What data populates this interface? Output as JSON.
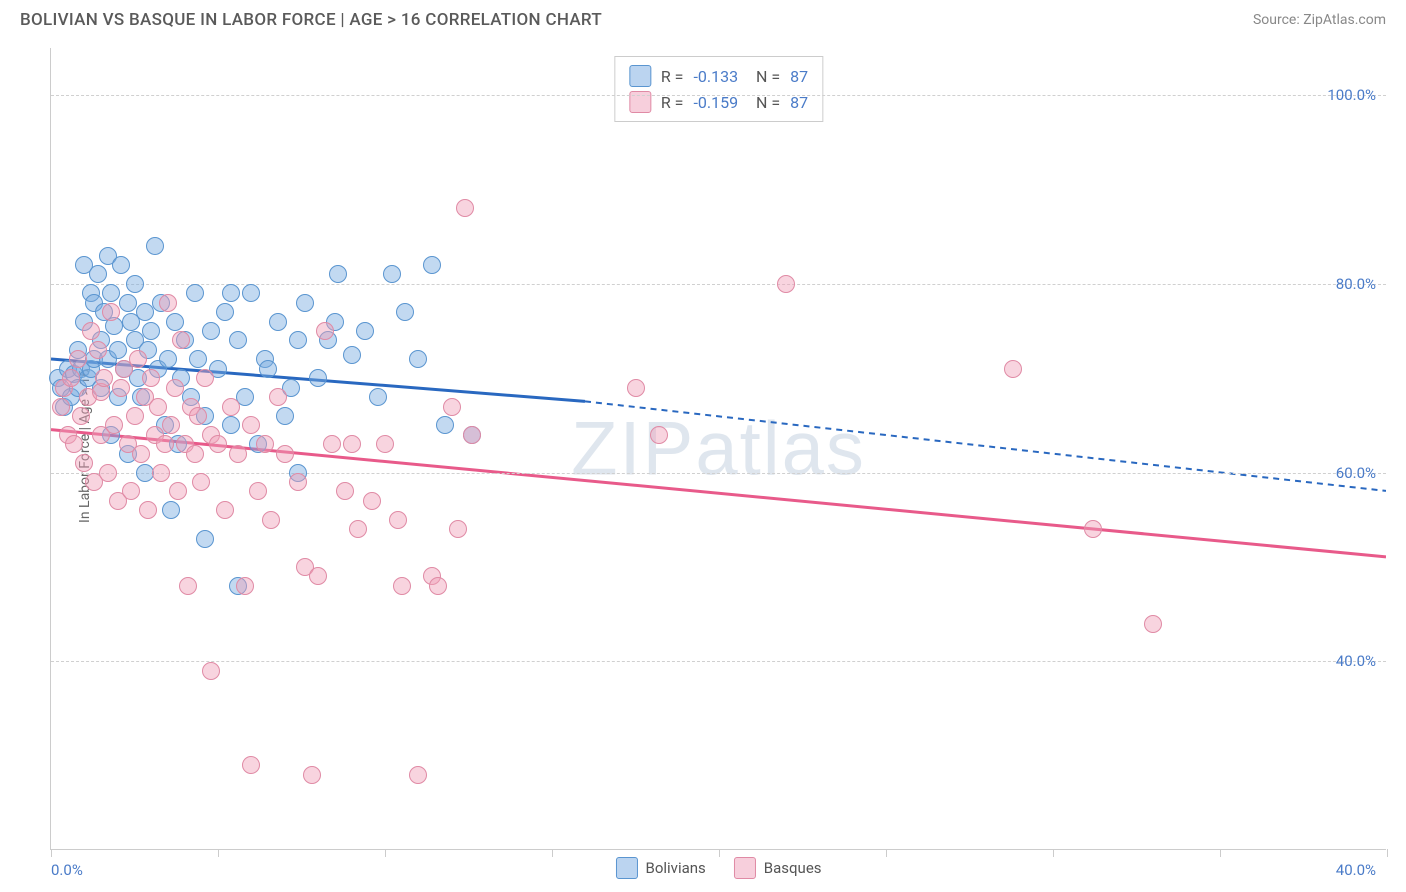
{
  "title": "BOLIVIAN VS BASQUE IN LABOR FORCE | AGE > 16 CORRELATION CHART",
  "source": "Source: ZipAtlas.com",
  "watermark": "ZIPatlas",
  "chart": {
    "type": "scatter",
    "ylabel": "In Labor Force | Age > 16",
    "xlim": [
      0,
      40
    ],
    "ylim": [
      20,
      105
    ],
    "xtick_positions": [
      0,
      5,
      10,
      15,
      20,
      25,
      30,
      35,
      40
    ],
    "xtick_labels": {
      "first": "0.0%",
      "last": "40.0%"
    },
    "ytick_positions": [
      40,
      60,
      80,
      100
    ],
    "ytick_labels": [
      "40.0%",
      "60.0%",
      "80.0%",
      "100.0%"
    ],
    "grid_color": "#d0d0d0",
    "background_color": "#ffffff",
    "axis_color": "#cccccc",
    "label_color": "#4a7bc8",
    "point_radius": 9,
    "series": [
      {
        "name": "Bolivians",
        "color_fill": "rgba(120,170,225,0.45)",
        "color_stroke": "#5a95d0",
        "trend_color": "#2968c0",
        "trend_width": 3,
        "trend": {
          "x1": 0,
          "y1": 72,
          "x2_solid": 16,
          "y2_solid": 67.5,
          "x2_dash": 40,
          "y2_dash": 58
        },
        "R": "-0.133",
        "N": "87",
        "points": [
          [
            0.2,
            70
          ],
          [
            0.3,
            69
          ],
          [
            0.4,
            67
          ],
          [
            0.5,
            71
          ],
          [
            0.6,
            68
          ],
          [
            0.7,
            70.5
          ],
          [
            0.8,
            73
          ],
          [
            0.8,
            69
          ],
          [
            0.9,
            71
          ],
          [
            1.0,
            76
          ],
          [
            1.0,
            82
          ],
          [
            1.1,
            70
          ],
          [
            1.2,
            71
          ],
          [
            1.2,
            79
          ],
          [
            1.3,
            78
          ],
          [
            1.3,
            72
          ],
          [
            1.4,
            81
          ],
          [
            1.5,
            74
          ],
          [
            1.5,
            69
          ],
          [
            1.6,
            77
          ],
          [
            1.7,
            83
          ],
          [
            1.7,
            72
          ],
          [
            1.8,
            64
          ],
          [
            1.8,
            79
          ],
          [
            1.9,
            75.5
          ],
          [
            2.0,
            73
          ],
          [
            2.0,
            68
          ],
          [
            2.1,
            82
          ],
          [
            2.2,
            71
          ],
          [
            2.3,
            78
          ],
          [
            2.3,
            62
          ],
          [
            2.4,
            76
          ],
          [
            2.5,
            80
          ],
          [
            2.5,
            74
          ],
          [
            2.6,
            70
          ],
          [
            2.7,
            68
          ],
          [
            2.8,
            77
          ],
          [
            2.8,
            60
          ],
          [
            2.9,
            73
          ],
          [
            3.0,
            75
          ],
          [
            3.1,
            84
          ],
          [
            3.2,
            71
          ],
          [
            3.3,
            78
          ],
          [
            3.4,
            65
          ],
          [
            3.5,
            72
          ],
          [
            3.6,
            56
          ],
          [
            3.7,
            76
          ],
          [
            3.8,
            63
          ],
          [
            3.9,
            70
          ],
          [
            4.0,
            74
          ],
          [
            4.2,
            68
          ],
          [
            4.3,
            79
          ],
          [
            4.4,
            72
          ],
          [
            4.6,
            66
          ],
          [
            4.6,
            53
          ],
          [
            4.8,
            75
          ],
          [
            5.0,
            71
          ],
          [
            5.2,
            77
          ],
          [
            5.4,
            79
          ],
          [
            5.4,
            65
          ],
          [
            5.6,
            74
          ],
          [
            5.6,
            48
          ],
          [
            5.8,
            68
          ],
          [
            6.0,
            79
          ],
          [
            6.2,
            63
          ],
          [
            6.4,
            72
          ],
          [
            6.5,
            71
          ],
          [
            6.8,
            76
          ],
          [
            7.0,
            66
          ],
          [
            7.2,
            69
          ],
          [
            7.4,
            74
          ],
          [
            7.4,
            60
          ],
          [
            7.6,
            78
          ],
          [
            8.0,
            70
          ],
          [
            8.3,
            74
          ],
          [
            8.5,
            76
          ],
          [
            8.6,
            81
          ],
          [
            9.0,
            72.5
          ],
          [
            9.4,
            75
          ],
          [
            9.8,
            68
          ],
          [
            10.2,
            81
          ],
          [
            10.6,
            77
          ],
          [
            11.0,
            72
          ],
          [
            11.4,
            82
          ],
          [
            11.8,
            65
          ],
          [
            12.6,
            64
          ]
        ]
      },
      {
        "name": "Basques",
        "color_fill": "rgba(240,160,185,0.45)",
        "color_stroke": "#e08aa5",
        "trend_color": "#e85a8a",
        "trend_width": 3,
        "trend": {
          "x1": 0,
          "y1": 64.5,
          "x2_solid": 40,
          "y2_solid": 51,
          "x2_dash": 40,
          "y2_dash": 51
        },
        "R": "-0.159",
        "N": "87",
        "points": [
          [
            0.3,
            67
          ],
          [
            0.4,
            69
          ],
          [
            0.5,
            64
          ],
          [
            0.6,
            70
          ],
          [
            0.7,
            63
          ],
          [
            0.8,
            72
          ],
          [
            0.9,
            66
          ],
          [
            1.0,
            61
          ],
          [
            1.1,
            68
          ],
          [
            1.2,
            75
          ],
          [
            1.3,
            59
          ],
          [
            1.4,
            73
          ],
          [
            1.5,
            68.5
          ],
          [
            1.5,
            64
          ],
          [
            1.6,
            70
          ],
          [
            1.7,
            60
          ],
          [
            1.8,
            77
          ],
          [
            1.9,
            65
          ],
          [
            2.0,
            57
          ],
          [
            2.1,
            69
          ],
          [
            2.2,
            71
          ],
          [
            2.3,
            63
          ],
          [
            2.4,
            58
          ],
          [
            2.5,
            66
          ],
          [
            2.6,
            72
          ],
          [
            2.7,
            62
          ],
          [
            2.8,
            68
          ],
          [
            2.9,
            56
          ],
          [
            3.0,
            70
          ],
          [
            3.1,
            64
          ],
          [
            3.2,
            67
          ],
          [
            3.3,
            60
          ],
          [
            3.4,
            63
          ],
          [
            3.5,
            78
          ],
          [
            3.6,
            65
          ],
          [
            3.7,
            69
          ],
          [
            3.8,
            58
          ],
          [
            3.9,
            74
          ],
          [
            4.0,
            63
          ],
          [
            4.1,
            48
          ],
          [
            4.2,
            67
          ],
          [
            4.3,
            62
          ],
          [
            4.4,
            66
          ],
          [
            4.5,
            59
          ],
          [
            4.6,
            70
          ],
          [
            4.8,
            64
          ],
          [
            4.8,
            39
          ],
          [
            5.0,
            63
          ],
          [
            5.2,
            56
          ],
          [
            5.4,
            67
          ],
          [
            5.6,
            62
          ],
          [
            5.8,
            48
          ],
          [
            6.0,
            65
          ],
          [
            6.0,
            29
          ],
          [
            6.2,
            58
          ],
          [
            6.4,
            63
          ],
          [
            6.6,
            55
          ],
          [
            6.8,
            68
          ],
          [
            7.0,
            62
          ],
          [
            7.4,
            59
          ],
          [
            7.6,
            50
          ],
          [
            7.8,
            28
          ],
          [
            8.0,
            49
          ],
          [
            8.2,
            75
          ],
          [
            8.4,
            63
          ],
          [
            8.8,
            58
          ],
          [
            9.0,
            63
          ],
          [
            9.2,
            54
          ],
          [
            9.6,
            57
          ],
          [
            10.0,
            63
          ],
          [
            10.4,
            55
          ],
          [
            10.5,
            48
          ],
          [
            11.0,
            28
          ],
          [
            11.4,
            49
          ],
          [
            11.6,
            48
          ],
          [
            12.0,
            67
          ],
          [
            12.2,
            54
          ],
          [
            12.4,
            88
          ],
          [
            12.6,
            64
          ],
          [
            17.5,
            69
          ],
          [
            18.2,
            64
          ],
          [
            22.0,
            80
          ],
          [
            28.8,
            71
          ],
          [
            31.2,
            54
          ],
          [
            33.0,
            44
          ]
        ]
      }
    ]
  },
  "legend": [
    {
      "label": "Bolivians",
      "class": "blue"
    },
    {
      "label": "Basques",
      "class": "pink"
    }
  ]
}
